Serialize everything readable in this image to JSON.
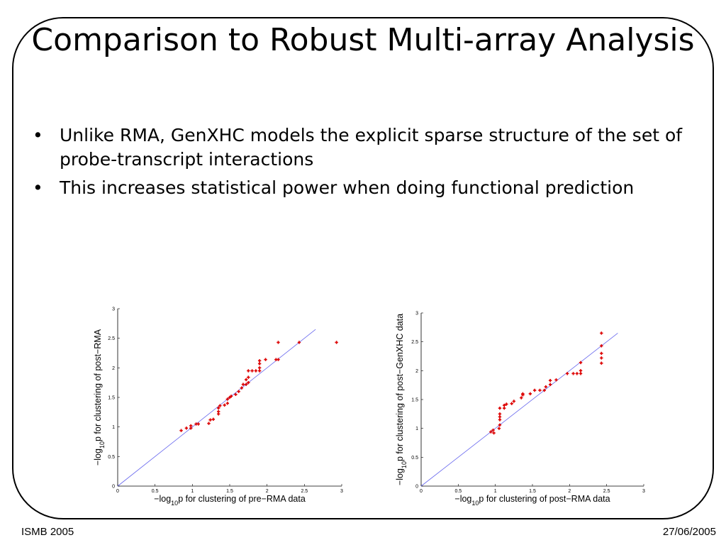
{
  "slide": {
    "title": "Comparison to Robust Multi-array Analysis",
    "bullets": [
      "Unlike RMA, GenXHC models the explicit sparse structure of the set of probe-transcript interactions",
      "This increases statistical power when doing functional prediction"
    ],
    "bullet_glyph": "•",
    "footer_left": "ISMB 2005",
    "footer_right": "27/06/2005"
  },
  "chart_data": [
    {
      "type": "scatter",
      "xlabel": "−log10p for clustering of pre−RMA data",
      "ylabel": "−log10p for clustering of post−RMA",
      "xlim": [
        0,
        3
      ],
      "ylim": [
        0,
        3
      ],
      "xticks": [
        "0",
        "0.5",
        "1",
        "1.5",
        "2",
        "2.5",
        "3"
      ],
      "yticks": [
        "0",
        "0.5",
        "1",
        "1.5",
        "2",
        "2.5",
        "3"
      ],
      "reference_line": {
        "from": [
          0,
          0
        ],
        "to": [
          2.65,
          2.65
        ],
        "color": "#6666ee"
      },
      "marker_color": "#dd0000",
      "points": [
        [
          0.85,
          0.94
        ],
        [
          0.92,
          0.98
        ],
        [
          0.98,
          1.02
        ],
        [
          0.98,
          0.98
        ],
        [
          1.05,
          1.05
        ],
        [
          1.08,
          1.05
        ],
        [
          1.22,
          1.06
        ],
        [
          1.24,
          1.12
        ],
        [
          1.28,
          1.13
        ],
        [
          1.35,
          1.22
        ],
        [
          1.35,
          1.26
        ],
        [
          1.35,
          1.32
        ],
        [
          1.37,
          1.36
        ],
        [
          1.43,
          1.37
        ],
        [
          1.47,
          1.4
        ],
        [
          1.47,
          1.47
        ],
        [
          1.5,
          1.5
        ],
        [
          1.52,
          1.52
        ],
        [
          1.58,
          1.55
        ],
        [
          1.62,
          1.6
        ],
        [
          1.66,
          1.66
        ],
        [
          1.68,
          1.72
        ],
        [
          1.72,
          1.72
        ],
        [
          1.75,
          1.75
        ],
        [
          1.72,
          1.8
        ],
        [
          1.75,
          1.84
        ],
        [
          1.75,
          1.95
        ],
        [
          1.8,
          1.95
        ],
        [
          1.85,
          1.95
        ],
        [
          1.9,
          1.95
        ],
        [
          1.9,
          2.0
        ],
        [
          1.9,
          2.07
        ],
        [
          1.9,
          2.12
        ],
        [
          1.98,
          2.14
        ],
        [
          2.12,
          2.14
        ],
        [
          2.15,
          2.14
        ],
        [
          2.15,
          2.43
        ],
        [
          2.43,
          2.43
        ],
        [
          2.93,
          2.43
        ]
      ]
    },
    {
      "type": "scatter",
      "xlabel": "−log10p for clustering of post−RMA data",
      "ylabel": "−log10p for clustering of post−GenXHC data",
      "xlim": [
        0,
        3
      ],
      "ylim": [
        0,
        3
      ],
      "xticks": [
        "0",
        "0.5",
        "1",
        "1.5",
        "2",
        "2.5",
        "3"
      ],
      "yticks": [
        "0",
        "0.5",
        "1",
        "1.5",
        "2",
        "2.5",
        "3"
      ],
      "reference_line": {
        "from": [
          0,
          0
        ],
        "to": [
          2.65,
          2.65
        ],
        "color": "#6666ee"
      },
      "marker_color": "#dd0000",
      "points": [
        [
          0.94,
          0.94
        ],
        [
          0.97,
          0.97
        ],
        [
          0.98,
          0.92
        ],
        [
          1.05,
          1.0
        ],
        [
          1.06,
          1.06
        ],
        [
          1.06,
          1.15
        ],
        [
          1.06,
          1.2
        ],
        [
          1.06,
          1.25
        ],
        [
          1.06,
          1.35
        ],
        [
          1.12,
          1.35
        ],
        [
          1.12,
          1.4
        ],
        [
          1.15,
          1.42
        ],
        [
          1.22,
          1.43
        ],
        [
          1.25,
          1.47
        ],
        [
          1.35,
          1.53
        ],
        [
          1.37,
          1.58
        ],
        [
          1.37,
          1.6
        ],
        [
          1.47,
          1.6
        ],
        [
          1.53,
          1.66
        ],
        [
          1.6,
          1.66
        ],
        [
          1.66,
          1.66
        ],
        [
          1.68,
          1.72
        ],
        [
          1.74,
          1.76
        ],
        [
          1.74,
          1.83
        ],
        [
          1.82,
          1.84
        ],
        [
          1.97,
          1.95
        ],
        [
          2.05,
          1.95
        ],
        [
          2.1,
          1.95
        ],
        [
          2.15,
          1.95
        ],
        [
          2.15,
          2.0
        ],
        [
          2.15,
          2.14
        ],
        [
          2.43,
          2.13
        ],
        [
          2.43,
          2.22
        ],
        [
          2.43,
          2.3
        ],
        [
          2.43,
          2.43
        ],
        [
          2.43,
          2.65
        ]
      ]
    }
  ]
}
